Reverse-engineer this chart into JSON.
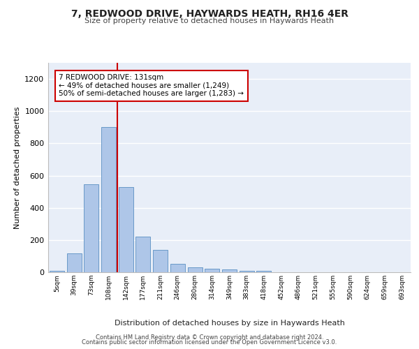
{
  "title": "7, REDWOOD DRIVE, HAYWARDS HEATH, RH16 4ER",
  "subtitle": "Size of property relative to detached houses in Haywards Heath",
  "xlabel": "Distribution of detached houses by size in Haywards Heath",
  "ylabel": "Number of detached properties",
  "bar_labels": [
    "5sqm",
    "39sqm",
    "73sqm",
    "108sqm",
    "142sqm",
    "177sqm",
    "211sqm",
    "246sqm",
    "280sqm",
    "314sqm",
    "349sqm",
    "383sqm",
    "418sqm",
    "452sqm",
    "486sqm",
    "521sqm",
    "555sqm",
    "590sqm",
    "624sqm",
    "659sqm",
    "693sqm"
  ],
  "bar_values": [
    8,
    115,
    545,
    900,
    530,
    220,
    140,
    52,
    32,
    20,
    17,
    8,
    10,
    0,
    0,
    0,
    0,
    0,
    0,
    0,
    0
  ],
  "bar_color": "#aec6e8",
  "bar_edgecolor": "#5a8fc2",
  "ylim": [
    0,
    1300
  ],
  "yticks": [
    0,
    200,
    400,
    600,
    800,
    1000,
    1200
  ],
  "property_line_x": 3.5,
  "property_line_color": "#cc0000",
  "annotation_text": "7 REDWOOD DRIVE: 131sqm\n← 49% of detached houses are smaller (1,249)\n50% of semi-detached houses are larger (1,283) →",
  "annotation_box_color": "#cc0000",
  "footer_line1": "Contains HM Land Registry data © Crown copyright and database right 2024.",
  "footer_line2": "Contains public sector information licensed under the Open Government Licence v3.0.",
  "background_color": "#e8eef8",
  "grid_color": "#ffffff"
}
